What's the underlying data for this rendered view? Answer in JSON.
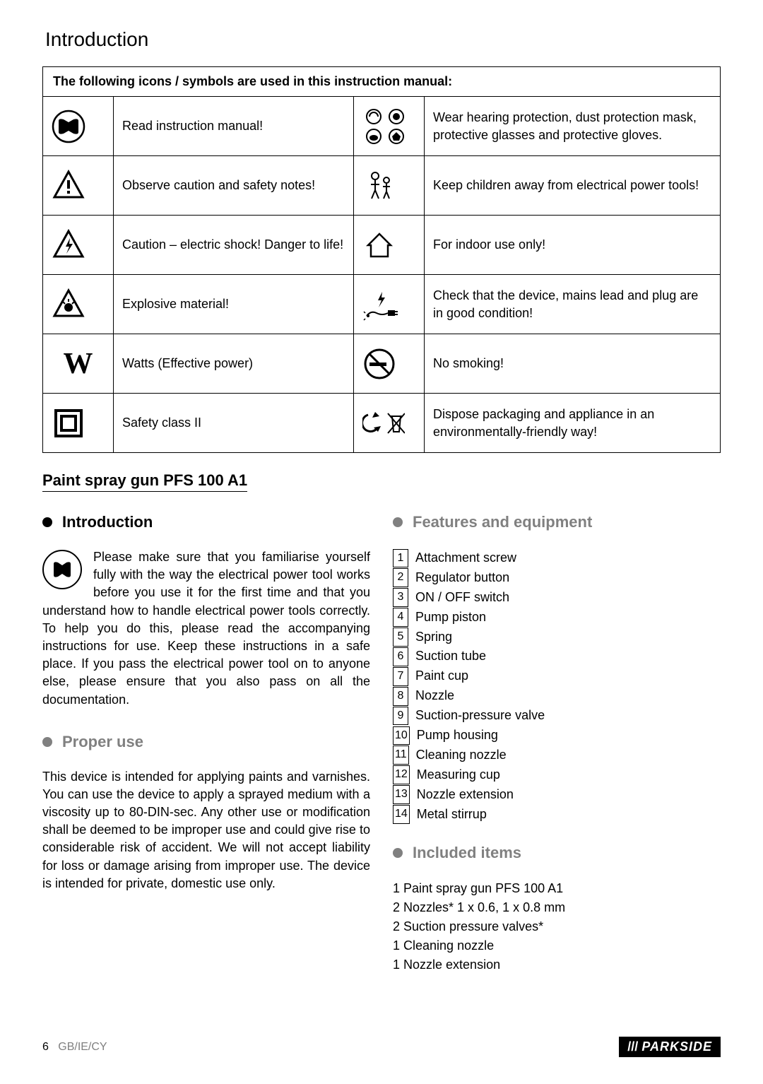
{
  "page_title": "Introduction",
  "table_header": "The following icons / symbols are used in this instruction manual:",
  "symbols": [
    {
      "icon": "read-manual",
      "desc": "Read instruction manual!",
      "icon2": "ppe",
      "desc2": "Wear hearing protection, dust protection mask, protective glasses and protective gloves."
    },
    {
      "icon": "warning",
      "desc": "Observe caution and safety notes!",
      "icon2": "children",
      "desc2": "Keep children away from electrical power tools!"
    },
    {
      "icon": "shock",
      "desc": "Caution – electric shock! Danger to life!",
      "icon2": "indoor",
      "desc2": "For indoor use only!"
    },
    {
      "icon": "explosive",
      "desc": "Explosive material!",
      "icon2": "plug",
      "desc2": "Check that the device, mains lead and plug are in good condition!"
    },
    {
      "icon": "watts",
      "desc": "Watts (Effective power)",
      "icon2": "nosmoke",
      "desc2": "No smoking!"
    },
    {
      "icon": "class2",
      "desc": "Safety class II",
      "icon2": "dispose",
      "desc2": "Dispose packaging and appliance in an environmentally-friendly way!"
    }
  ],
  "product_title": "Paint spray gun PFS 100 A1",
  "sections": {
    "intro_h": "Introduction",
    "intro_text": "Please make sure that you familiarise yourself fully with the way the electrical power tool works before you use it for the first time and that you understand how to handle electrical power tools correctly. To help you do this, please read the accompanying instructions for use. Keep these instructions in a safe place. If you pass the electrical power tool on to anyone else, please ensure that you also pass on all the documentation.",
    "proper_h": "Proper use",
    "proper_text": "This device is intended for applying paints and varnishes. You can use the device to apply a sprayed medium with a viscosity up to 80-DIN-sec. Any other use or modification shall be deemed to be improper use and could give rise to considerable risk of accident. We will not accept liability for loss or damage arising from improper use. The device is intended for private, domestic use only.",
    "features_h": "Features and equipment",
    "features": [
      "Attachment screw",
      "Regulator button",
      "ON / OFF switch",
      "Pump piston",
      "Spring",
      "Suction tube",
      "Paint cup",
      "Nozzle",
      "Suction-pressure valve",
      "Pump housing",
      "Cleaning nozzle",
      "Measuring cup",
      "Nozzle extension",
      "Metal stirrup"
    ],
    "included_h": "Included items",
    "included": [
      "1 Paint spray gun PFS 100 A1",
      "2 Nozzles*  1 x 0.6, 1 x 0.8 mm",
      "2 Suction pressure valves*",
      "1 Cleaning nozzle",
      "1 Nozzle extension"
    ]
  },
  "footer": {
    "page": "6",
    "region": "GB/IE/CY",
    "brand": "PARKSIDE"
  }
}
